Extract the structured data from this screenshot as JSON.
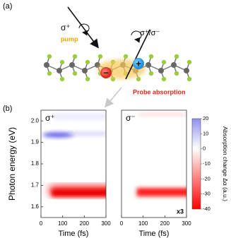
{
  "panel_a": {
    "label": "(a)",
    "pump_polarization": "σ⁺",
    "pump_label": "pump",
    "probe_polarization": "σ⁺/σ⁻",
    "minus": "−",
    "plus": "+",
    "probe_label": "Probe absorption"
  },
  "panel_b": {
    "label": "(b)",
    "y_axis_label": "Photon energy (eV)",
    "x_axis_label": "Time (fs)",
    "plots": [
      {
        "title": "σ⁺",
        "xlim": [
          0,
          300
        ],
        "ylim": [
          1.55,
          2.05
        ],
        "xticks": [
          0,
          100,
          200,
          300
        ],
        "yticks": [
          1.6,
          1.7,
          1.8,
          1.9,
          {
            "value": 2.0,
            "label": "2.0"
          }
        ]
      },
      {
        "title": "σ⁻",
        "annotation": "x3",
        "xlim": [
          0,
          300
        ],
        "ylim": [
          1.55,
          2.05
        ],
        "xticks": [
          0,
          100,
          200,
          300
        ]
      }
    ],
    "colorbar": {
      "label": "Absorption change Δα (a.u.)",
      "lim": [
        -40,
        20
      ],
      "ticks": [
        20,
        10,
        0,
        -10,
        -20,
        -30,
        -40
      ]
    }
  }
}
